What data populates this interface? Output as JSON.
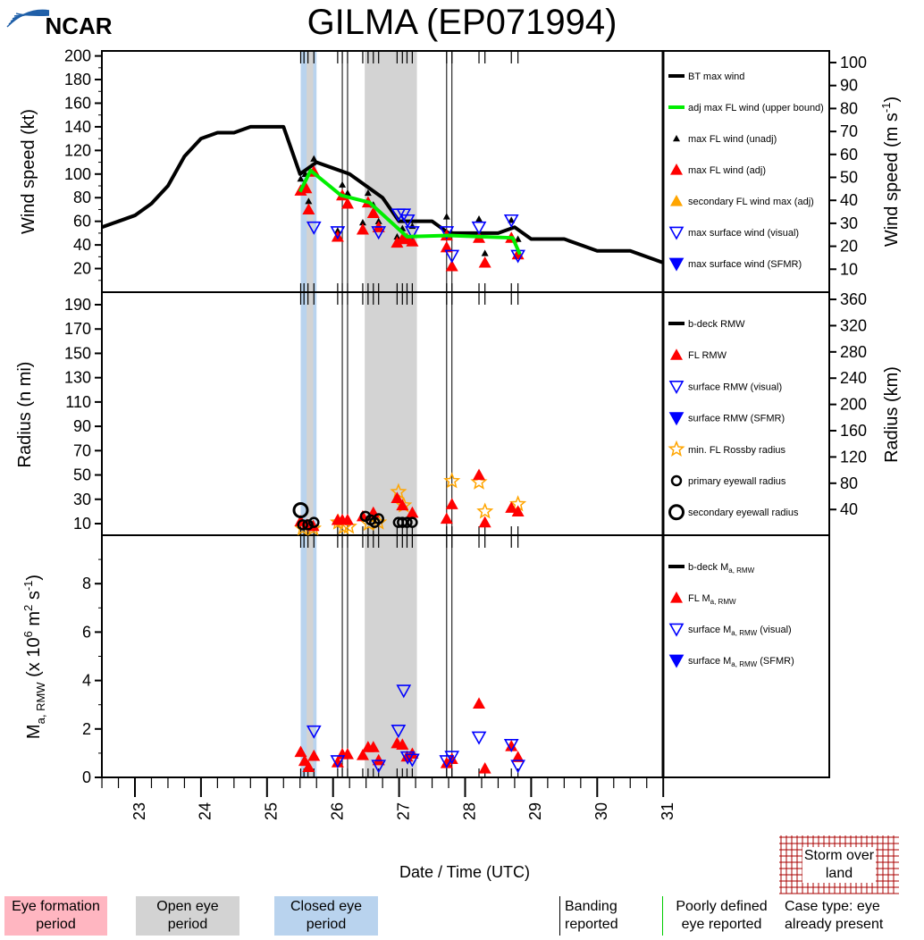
{
  "header": {
    "title": "GILMA (EP071994)",
    "logo_text": "NCAR"
  },
  "x_axis": {
    "label": "Date / Time (UTC)",
    "ticks": [
      "23",
      "24",
      "25",
      "26",
      "27",
      "28",
      "29",
      "30",
      "31"
    ],
    "range": [
      22.5,
      31
    ]
  },
  "colors": {
    "bt": "#000000",
    "adj_fl": "#00ee00",
    "fl_adj": "#ff0000",
    "unadj": "#000000",
    "secondary": "#ffa500",
    "visual": "#0000ff",
    "sfmr": "#0000ff",
    "star": "#ffa500",
    "eye_formation": "#ffb6c1",
    "open_eye": "#d3d3d3",
    "closed_eye": "#b9d3ee",
    "land": "#aa0000"
  },
  "periods": {
    "closed_eye": [
      [
        25.51,
        25.75
      ]
    ],
    "open_eye": [
      [
        25.6,
        25.7
      ],
      [
        26.48,
        27.27
      ]
    ],
    "banding_lines": [
      26.14,
      26.22,
      27.72,
      27.8
    ],
    "fix_times": [
      25.51,
      25.56,
      25.62,
      25.71,
      26.07,
      26.14,
      26.22,
      26.45,
      26.53,
      26.61,
      26.69,
      26.97,
      27.05,
      27.12,
      27.2,
      27.72,
      27.8,
      28.21,
      28.3,
      28.7,
      28.8
    ]
  },
  "chart_data": [
    {
      "type": "line",
      "panel": "wind",
      "ylabel": "Wind speed (kt)",
      "ylabel_right_main": "Wind speed (m s",
      "ylabel_right_sup": "-1",
      "ylabel_right_end": ")",
      "ylim": [
        0,
        205
      ],
      "yticks": [
        "20",
        "40",
        "60",
        "80",
        "100",
        "120",
        "140",
        "160",
        "180",
        "200"
      ],
      "yticks_right": [
        "10",
        "20",
        "30",
        "40",
        "50",
        "60",
        "70",
        "80",
        "90",
        "100"
      ],
      "legend": [
        {
          "label": "BT max wind",
          "marker": "line",
          "color": "#000000"
        },
        {
          "label": "adj max FL wind (upper bound)",
          "marker": "line",
          "color": "#00ee00"
        },
        {
          "label": "max FL wind (unadj)",
          "marker": "small-up",
          "color": "#000000"
        },
        {
          "label": "max FL wind (adj)",
          "marker": "up",
          "color": "#ff0000"
        },
        {
          "label": "secondary FL wind max (adj)",
          "marker": "up",
          "color": "#ffa500"
        },
        {
          "label": "max surface wind (visual)",
          "marker": "open-down",
          "color": "#0000ff"
        },
        {
          "label": "max surface wind (SFMR)",
          "marker": "down",
          "color": "#0000ff"
        }
      ],
      "series": {
        "bt": [
          [
            22.5,
            55
          ],
          [
            22.75,
            60
          ],
          [
            23.0,
            65
          ],
          [
            23.25,
            75
          ],
          [
            23.5,
            90
          ],
          [
            23.75,
            115
          ],
          [
            24.0,
            130
          ],
          [
            24.25,
            135
          ],
          [
            24.5,
            135
          ],
          [
            24.75,
            140
          ],
          [
            25.0,
            140
          ],
          [
            25.25,
            140
          ],
          [
            25.5,
            100
          ],
          [
            25.75,
            110
          ],
          [
            26.0,
            105
          ],
          [
            26.25,
            100
          ],
          [
            26.5,
            90
          ],
          [
            26.75,
            80
          ],
          [
            27.0,
            60
          ],
          [
            27.25,
            60
          ],
          [
            27.5,
            60
          ],
          [
            27.75,
            50
          ],
          [
            28.0,
            50
          ],
          [
            28.25,
            50
          ],
          [
            28.5,
            50
          ],
          [
            28.75,
            55
          ],
          [
            29.0,
            45
          ],
          [
            29.25,
            45
          ],
          [
            29.5,
            45
          ],
          [
            29.75,
            40
          ],
          [
            30.0,
            35
          ],
          [
            30.25,
            35
          ],
          [
            30.5,
            35
          ],
          [
            30.75,
            30
          ],
          [
            31.0,
            25
          ]
        ],
        "adj_fl": [
          [
            25.5,
            85
          ],
          [
            25.66,
            103
          ],
          [
            26.12,
            82
          ],
          [
            26.55,
            76
          ],
          [
            27.12,
            47
          ],
          [
            27.75,
            48
          ],
          [
            28.72,
            46
          ],
          [
            28.83,
            32
          ]
        ],
        "fl_unadj": [
          [
            25.51,
            96
          ],
          [
            25.58,
            100
          ],
          [
            25.71,
            113
          ],
          [
            25.63,
            77
          ],
          [
            26.07,
            52
          ],
          [
            26.14,
            91
          ],
          [
            26.22,
            84
          ],
          [
            26.53,
            84
          ],
          [
            26.61,
            74
          ],
          [
            26.45,
            59
          ],
          [
            26.69,
            60
          ],
          [
            26.97,
            47
          ],
          [
            27.05,
            54
          ],
          [
            27.2,
            56
          ],
          [
            27.72,
            64
          ],
          [
            28.21,
            62
          ],
          [
            28.3,
            33
          ],
          [
            28.7,
            61
          ],
          [
            28.8,
            45
          ]
        ],
        "fl_adj": [
          [
            25.51,
            86
          ],
          [
            25.59,
            88
          ],
          [
            25.71,
            102
          ],
          [
            25.63,
            70
          ],
          [
            26.07,
            47
          ],
          [
            26.14,
            82
          ],
          [
            26.22,
            75
          ],
          [
            26.45,
            53
          ],
          [
            26.53,
            76
          ],
          [
            26.61,
            67
          ],
          [
            26.69,
            55
          ],
          [
            26.97,
            42
          ],
          [
            27.05,
            45
          ],
          [
            27.12,
            45
          ],
          [
            27.2,
            43
          ],
          [
            27.72,
            38
          ],
          [
            27.72,
            48
          ],
          [
            27.8,
            22
          ],
          [
            28.21,
            46
          ],
          [
            28.3,
            25
          ],
          [
            28.7,
            46
          ],
          [
            28.8,
            32
          ]
        ],
        "visual": [
          [
            25.71,
            55
          ],
          [
            26.07,
            51
          ],
          [
            26.69,
            51
          ],
          [
            26.99,
            66
          ],
          [
            27.07,
            66
          ],
          [
            27.13,
            61
          ],
          [
            27.2,
            51
          ],
          [
            27.72,
            51
          ],
          [
            27.8,
            31
          ],
          [
            28.21,
            55
          ],
          [
            28.7,
            61
          ],
          [
            28.8,
            31
          ]
        ]
      }
    },
    {
      "type": "scatter",
      "panel": "radius",
      "ylabel": "Radius (n mi)",
      "ylabel_right": "Radius (km)",
      "ylim": [
        0,
        200
      ],
      "yticks": [
        "10",
        "30",
        "50",
        "70",
        "90",
        "110",
        "130",
        "150",
        "170",
        "190"
      ],
      "yticks_right": [
        "40",
        "80",
        "120",
        "160",
        "200",
        "240",
        "280",
        "320",
        "360"
      ],
      "legend": [
        {
          "label": "b-deck RMW",
          "marker": "line",
          "color": "#000000"
        },
        {
          "label": "FL RMW",
          "marker": "up",
          "color": "#ff0000"
        },
        {
          "label": "surface RMW (visual)",
          "marker": "open-down",
          "color": "#0000ff"
        },
        {
          "label": "surface RMW (SFMR)",
          "marker": "down",
          "color": "#0000ff"
        },
        {
          "label": "min. FL Rossby radius",
          "marker": "star",
          "color": "#ffa500"
        },
        {
          "label": "primary eyewall radius",
          "marker": "circle",
          "color": "#000000"
        },
        {
          "label": "secondary eyewall radius",
          "marker": "big-circle",
          "color": "#000000"
        }
      ],
      "series": {
        "fl_rmw": [
          [
            25.51,
            12
          ],
          [
            25.6,
            9
          ],
          [
            25.7,
            8
          ],
          [
            26.07,
            13
          ],
          [
            26.14,
            13
          ],
          [
            26.22,
            13
          ],
          [
            26.45,
            16
          ],
          [
            26.61,
            19
          ],
          [
            26.97,
            31
          ],
          [
            27.05,
            25
          ],
          [
            27.2,
            19
          ],
          [
            27.72,
            14
          ],
          [
            27.8,
            26
          ],
          [
            28.21,
            50
          ],
          [
            28.3,
            11
          ],
          [
            28.7,
            23
          ],
          [
            28.8,
            20
          ]
        ],
        "rossby": [
          [
            25.54,
            6
          ],
          [
            25.7,
            6
          ],
          [
            26.08,
            11
          ],
          [
            26.16,
            7
          ],
          [
            26.24,
            7.5
          ],
          [
            26.54,
            10
          ],
          [
            26.69,
            11
          ],
          [
            26.99,
            36
          ],
          [
            27.07,
            25
          ],
          [
            27.8,
            45
          ],
          [
            28.21,
            44
          ],
          [
            28.3,
            20
          ],
          [
            28.8,
            26
          ]
        ],
        "primary": [
          [
            25.54,
            9
          ],
          [
            25.62,
            9
          ],
          [
            25.71,
            11
          ],
          [
            26.49,
            16
          ],
          [
            26.57,
            13
          ],
          [
            26.63,
            11
          ],
          [
            26.69,
            14
          ],
          [
            26.99,
            11
          ],
          [
            27.05,
            11
          ],
          [
            27.12,
            11
          ],
          [
            27.2,
            11
          ]
        ],
        "secondary": [
          [
            25.51,
            21
          ]
        ]
      }
    },
    {
      "type": "scatter",
      "panel": "ma",
      "ylabel_main": "M",
      "ylabel_sub": "a, RMW",
      "ylabel_mid": " (x 10",
      "ylabel_sup1": "6",
      "ylabel_mid2": " m",
      "ylabel_sup2": "2",
      "ylabel_mid3": " s",
      "ylabel_sup3": "-1",
      "ylabel_end": ")",
      "ylim": [
        0,
        10
      ],
      "yticks": [
        "0",
        "2",
        "4",
        "6",
        "8"
      ],
      "legend": [
        {
          "label": "b-deck M",
          "sub": "a, RMW",
          "suffix": "",
          "marker": "line",
          "color": "#000000"
        },
        {
          "label": "FL M",
          "sub": "a, RMW",
          "suffix": "",
          "marker": "up",
          "color": "#ff0000"
        },
        {
          "label": "surface M",
          "sub": "a, RMW",
          "suffix": " (visual)",
          "marker": "open-down",
          "color": "#0000ff"
        },
        {
          "label": "surface M",
          "sub": "a, RMW",
          "suffix": " (SFMR)",
          "marker": "down",
          "color": "#0000ff"
        }
      ],
      "series": {
        "fl": [
          [
            25.51,
            1.05
          ],
          [
            25.57,
            0.68
          ],
          [
            25.63,
            0.43
          ],
          [
            25.71,
            0.89
          ],
          [
            26.07,
            0.62
          ],
          [
            26.14,
            0.96
          ],
          [
            26.22,
            0.96
          ],
          [
            26.45,
            0.92
          ],
          [
            26.53,
            1.25
          ],
          [
            26.61,
            1.25
          ],
          [
            26.69,
            0.71
          ],
          [
            26.97,
            1.41
          ],
          [
            27.05,
            1.35
          ],
          [
            27.12,
            0.86
          ],
          [
            27.2,
            0.98
          ],
          [
            27.72,
            0.59
          ],
          [
            27.8,
            0.76
          ],
          [
            28.21,
            3.05
          ],
          [
            28.3,
            0.37
          ],
          [
            28.7,
            1.29
          ],
          [
            28.8,
            0.84
          ]
        ],
        "visual": [
          [
            25.71,
            1.91
          ],
          [
            26.07,
            0.68
          ],
          [
            26.69,
            0.49
          ],
          [
            26.99,
            1.94
          ],
          [
            27.07,
            3.59
          ],
          [
            27.13,
            0.84
          ],
          [
            27.2,
            0.74
          ],
          [
            27.72,
            0.68
          ],
          [
            27.8,
            0.86
          ],
          [
            28.21,
            1.66
          ],
          [
            28.7,
            1.35
          ],
          [
            28.8,
            0.49
          ]
        ]
      }
    }
  ],
  "bottom_legend": {
    "eye_formation": "Eye formation period",
    "open_eye": "Open eye period",
    "closed_eye": "Closed eye period",
    "banding": "Banding reported",
    "poorly_defined": "Poorly defined eye reported",
    "case_type": "Case type: eye already present",
    "storm_over_land": "Storm over land"
  }
}
